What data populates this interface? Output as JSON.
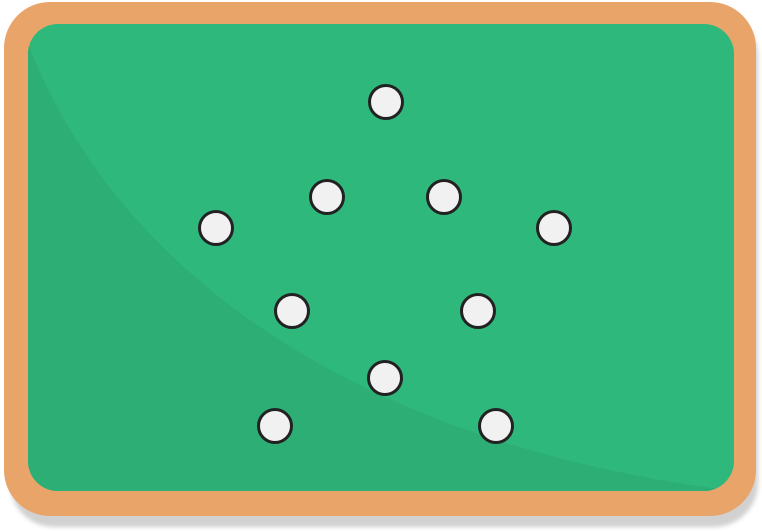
{
  "board": {
    "frame_color": "#E9A46A",
    "surface_color": "#2FB87B",
    "shade_color": "#2DAE74"
  },
  "dot_style": {
    "fill": "#F1F1F1",
    "stroke": "#222222"
  },
  "dot_count": 10
}
